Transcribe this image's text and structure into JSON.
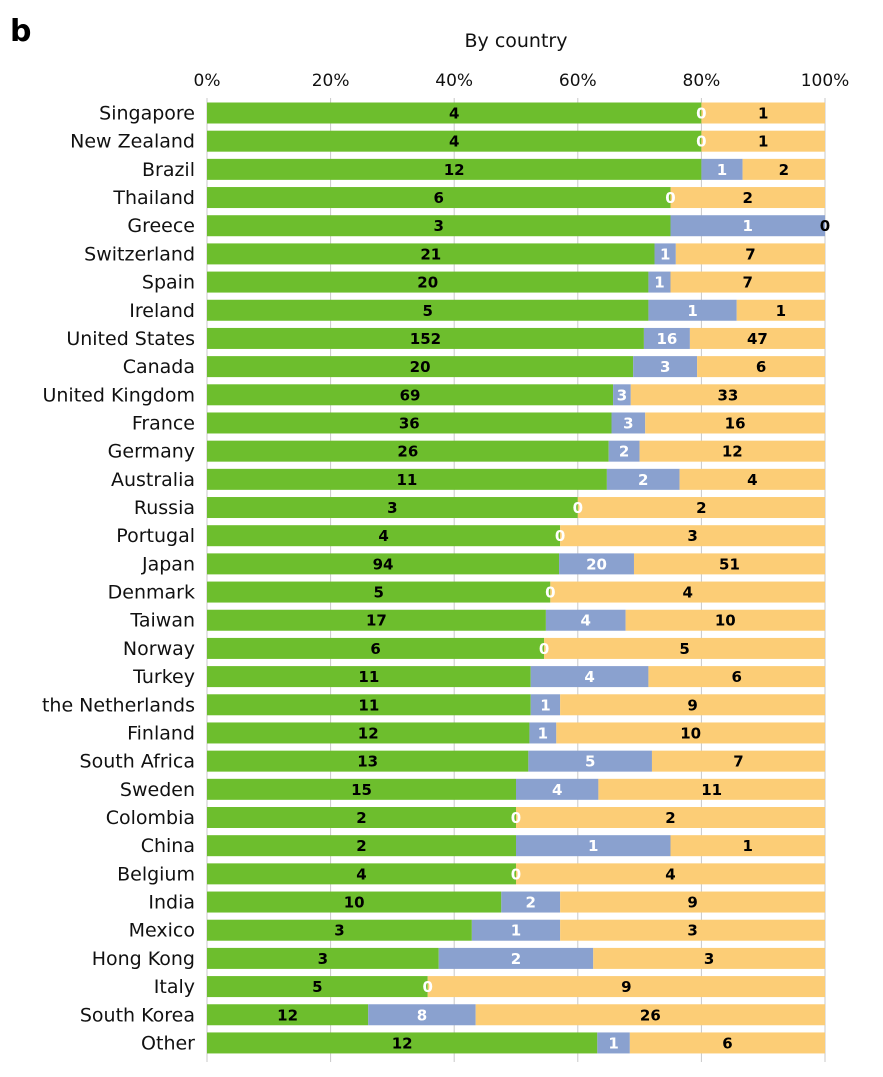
{
  "panel_label": "b",
  "chart_data": {
    "type": "bar",
    "orientation": "horizontal",
    "stacked": true,
    "normalized": true,
    "title": "By country",
    "xticks": [
      "0%",
      "20%",
      "40%",
      "60%",
      "80%",
      "100%"
    ],
    "xlim": [
      0,
      100
    ],
    "grid": true,
    "categories": [
      "Singapore",
      "New Zealand",
      "Brazil",
      "Thailand",
      "Greece",
      "Switzerland",
      "Spain",
      "Ireland",
      "United States",
      "Canada",
      "United Kingdom",
      "France",
      "Germany",
      "Australia",
      "Russia",
      "Portugal",
      "Japan",
      "Denmark",
      "Taiwan",
      "Norway",
      "Turkey",
      "the Netherlands",
      "Finland",
      "South Africa",
      "Sweden",
      "Colombia",
      "China",
      "Belgium",
      "India",
      "Mexico",
      "Hong Kong",
      "Italy",
      "South Korea",
      "Other"
    ],
    "series": [
      {
        "color": "#6dbe2d",
        "label_color": "#000000",
        "values": [
          4,
          4,
          12,
          6,
          3,
          21,
          20,
          5,
          152,
          20,
          69,
          36,
          26,
          11,
          3,
          4,
          94,
          5,
          17,
          6,
          11,
          11,
          12,
          13,
          15,
          2,
          2,
          4,
          10,
          3,
          3,
          5,
          12,
          12
        ]
      },
      {
        "color": "#8aa1cf",
        "label_color": "#ffffff",
        "values": [
          0,
          0,
          1,
          0,
          1,
          1,
          1,
          1,
          16,
          3,
          3,
          3,
          2,
          2,
          0,
          0,
          20,
          0,
          4,
          0,
          4,
          1,
          1,
          5,
          4,
          0,
          1,
          0,
          2,
          1,
          2,
          0,
          8,
          1
        ]
      },
      {
        "color": "#fccd76",
        "label_color": "#000000",
        "values": [
          1,
          1,
          2,
          2,
          0,
          7,
          7,
          1,
          47,
          6,
          33,
          16,
          12,
          4,
          2,
          3,
          51,
          4,
          10,
          5,
          6,
          9,
          10,
          7,
          11,
          2,
          1,
          4,
          9,
          3,
          3,
          9,
          26,
          6
        ]
      }
    ]
  }
}
